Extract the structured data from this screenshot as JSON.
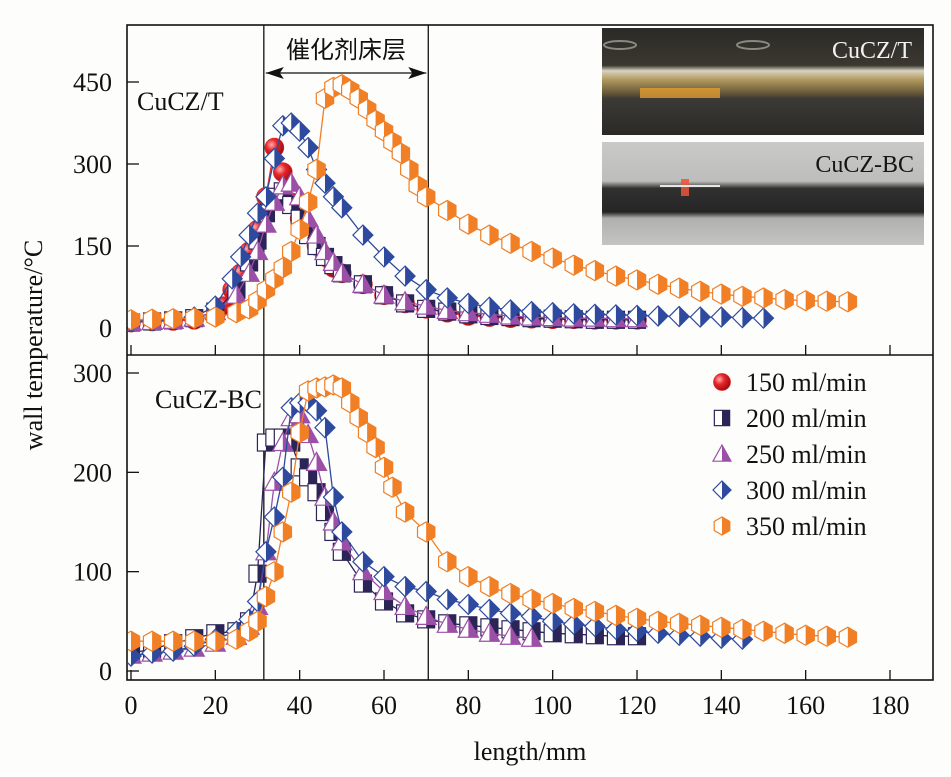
{
  "chart_data": {
    "type": "line",
    "xlabel": "length/mm",
    "ylabel": "wall temperature/°C",
    "xlim": [
      0,
      190
    ],
    "x_ticks": [
      0,
      20,
      40,
      60,
      80,
      100,
      120,
      140,
      160,
      180
    ],
    "catalyst_bed": {
      "label": "催化剂床层",
      "x_start": 31.5,
      "x_end": 70.5
    },
    "legend": {
      "placement": "bottom-panel top-right",
      "entries": [
        "150 ml/min",
        "200 ml/min",
        "250 ml/min",
        "300 ml/min",
        "350 ml/min"
      ]
    },
    "series_styles": [
      {
        "name": "150 ml/min",
        "marker": "sphere",
        "color": "#e8262a"
      },
      {
        "name": "200 ml/min",
        "marker": "half-filled-square",
        "color": "#2b2456"
      },
      {
        "name": "250 ml/min",
        "marker": "half-filled-triangle",
        "color": "#9b4fa6"
      },
      {
        "name": "300 ml/min",
        "marker": "half-filled-diamond",
        "color": "#2e4a9e"
      },
      {
        "name": "350 ml/min",
        "marker": "half-filled-hexagon",
        "color": "#f07f26"
      }
    ],
    "panels": [
      {
        "label": "CuCZ/T",
        "ylim": [
          -30,
          560
        ],
        "y_ticks": [
          0,
          150,
          300,
          450
        ],
        "series": [
          {
            "name": "150 ml/min",
            "x": [
              0,
              5,
              10,
              15,
              20,
              22,
              24,
              26,
              28,
              30,
              32,
              34,
              36,
              38,
              40,
              42,
              44,
              46,
              48,
              50,
              55,
              60,
              65,
              70,
              75,
              80,
              85,
              90,
              95,
              100,
              105,
              110,
              115,
              120
            ],
            "y": [
              10,
              12,
              13,
              15,
              22,
              40,
              70,
              100,
              140,
              180,
              240,
              330,
              285,
              230,
              200,
              175,
              150,
              130,
              110,
              100,
              80,
              60,
              45,
              35,
              28,
              22,
              20,
              18,
              17,
              16,
              16,
              15,
              15,
              15
            ]
          },
          {
            "name": "200 ml/min",
            "x": [
              0,
              5,
              10,
              15,
              20,
              25,
              28,
              30,
              32,
              34,
              36,
              38,
              40,
              42,
              44,
              46,
              48,
              50,
              55,
              60,
              65,
              70,
              75,
              80,
              85,
              90,
              95,
              100,
              105,
              110,
              115,
              120
            ],
            "y": [
              10,
              12,
              14,
              18,
              30,
              70,
              120,
              160,
              210,
              240,
              250,
              225,
              200,
              170,
              150,
              130,
              115,
              100,
              80,
              60,
              45,
              35,
              30,
              25,
              22,
              20,
              18,
              17,
              16,
              15,
              15,
              15
            ]
          },
          {
            "name": "250 ml/min",
            "x": [
              0,
              5,
              10,
              15,
              20,
              25,
              28,
              30,
              32,
              34,
              36,
              38,
              40,
              42,
              44,
              46,
              48,
              50,
              55,
              60,
              65,
              70,
              75,
              80,
              85,
              90,
              95,
              100,
              105,
              110,
              115,
              120
            ],
            "y": [
              10,
              12,
              14,
              18,
              30,
              60,
              100,
              140,
              190,
              230,
              260,
              265,
              240,
              200,
              170,
              140,
              120,
              100,
              80,
              60,
              48,
              40,
              32,
              28,
              25,
              22,
              20,
              19,
              18,
              18,
              17,
              17
            ]
          },
          {
            "name": "300 ml/min",
            "x": [
              0,
              5,
              10,
              15,
              20,
              24,
              26,
              28,
              30,
              32,
              34,
              36,
              38,
              40,
              42,
              44,
              46,
              48,
              50,
              55,
              60,
              65,
              70,
              75,
              80,
              85,
              90,
              95,
              100,
              105,
              110,
              115,
              120,
              125,
              130,
              135,
              140,
              145,
              150
            ],
            "y": [
              12,
              14,
              16,
              20,
              40,
              90,
              130,
              170,
              210,
              240,
              310,
              370,
              375,
              360,
              330,
              290,
              265,
              240,
              220,
              170,
              130,
              95,
              70,
              55,
              45,
              38,
              33,
              30,
              28,
              26,
              25,
              24,
              23,
              22,
              21,
              20,
              20,
              19,
              18
            ]
          },
          {
            "name": "350 ml/min",
            "x": [
              0,
              5,
              10,
              15,
              20,
              25,
              28,
              30,
              32,
              34,
              36,
              38,
              40,
              42,
              44,
              46,
              48,
              50,
              52,
              54,
              56,
              58,
              60,
              62,
              64,
              66,
              68,
              70,
              75,
              80,
              85,
              90,
              95,
              100,
              105,
              110,
              115,
              120,
              125,
              130,
              135,
              140,
              145,
              150,
              155,
              160,
              165,
              170
            ],
            "y": [
              15,
              16,
              17,
              18,
              20,
              28,
              35,
              50,
              70,
              90,
              110,
              140,
              180,
              230,
              290,
              420,
              440,
              445,
              435,
              420,
              400,
              380,
              360,
              340,
              320,
              290,
              260,
              240,
              215,
              190,
              170,
              155,
              140,
              128,
              115,
              105,
              95,
              88,
              80,
              73,
              67,
              62,
              58,
              55,
              52,
              50,
              49,
              48
            ]
          }
        ]
      },
      {
        "label": "CuCZ-BC",
        "ylim": [
          -5,
          308
        ],
        "y_ticks": [
          0,
          100,
          200,
          300
        ],
        "series": [
          {
            "name": "200 ml/min",
            "x": [
              0,
              5,
              10,
              15,
              20,
              25,
              28,
              30,
              32,
              34,
              36,
              38,
              40,
              42,
              44,
              46,
              48,
              50,
              55,
              60,
              65,
              70,
              75,
              80,
              85,
              90,
              95,
              100,
              105,
              110,
              115,
              120
            ],
            "y": [
              18,
              22,
              28,
              33,
              38,
              40,
              50,
              98,
              230,
              235,
              235,
              230,
              205,
              195,
              180,
              160,
              140,
              120,
              88,
              70,
              58,
              52,
              48,
              46,
              44,
              42,
              40,
              38,
              37,
              36,
              35,
              35
            ]
          },
          {
            "name": "250 ml/min",
            "x": [
              0,
              5,
              10,
              15,
              20,
              25,
              28,
              30,
              32,
              34,
              36,
              38,
              40,
              42,
              44,
              46,
              48,
              50,
              55,
              60,
              65,
              70,
              75,
              80,
              85,
              90,
              95
            ],
            "y": [
              16,
              18,
              20,
              23,
              28,
              35,
              45,
              65,
              120,
              190,
              230,
              255,
              258,
              238,
              210,
              175,
              150,
              130,
              100,
              80,
              65,
              55,
              47,
              42,
              38,
              35,
              33
            ]
          },
          {
            "name": "300 ml/min",
            "x": [
              0,
              5,
              10,
              15,
              20,
              25,
              28,
              30,
              32,
              34,
              36,
              38,
              40,
              42,
              44,
              46,
              48,
              50,
              55,
              60,
              65,
              70,
              75,
              80,
              85,
              90,
              95,
              100,
              105,
              110,
              115,
              120,
              125,
              130,
              135,
              140,
              145
            ],
            "y": [
              15,
              18,
              20,
              25,
              32,
              40,
              52,
              70,
              120,
              155,
              195,
              265,
              270,
              270,
              262,
              245,
              175,
              140,
              110,
              95,
              85,
              80,
              72,
              67,
              62,
              58,
              55,
              50,
              47,
              45,
              42,
              40,
              38,
              36,
              35,
              33,
              32
            ]
          },
          {
            "name": "350 ml/min",
            "x": [
              0,
              5,
              10,
              15,
              20,
              25,
              28,
              30,
              32,
              34,
              36,
              38,
              40,
              42,
              44,
              46,
              48,
              50,
              52,
              54,
              56,
              58,
              60,
              62,
              65,
              70,
              75,
              80,
              85,
              90,
              95,
              100,
              105,
              110,
              115,
              120,
              125,
              130,
              135,
              140,
              145,
              150,
              155,
              160,
              165,
              170
            ],
            "y": [
              30,
              30,
              30,
              30,
              30,
              32,
              40,
              50,
              75,
              100,
              140,
              180,
              240,
              282,
              285,
              286,
              288,
              285,
              270,
              255,
              240,
              225,
              205,
              185,
              160,
              140,
              110,
              95,
              85,
              78,
              72,
              68,
              63,
              60,
              56,
              53,
              50,
              48,
              46,
              44,
              42,
              40,
              38,
              36,
              35,
              34
            ]
          }
        ]
      }
    ]
  },
  "photo_inset": {
    "top_label": "CuCZ/T",
    "bottom_label": "CuCZ-BC"
  }
}
